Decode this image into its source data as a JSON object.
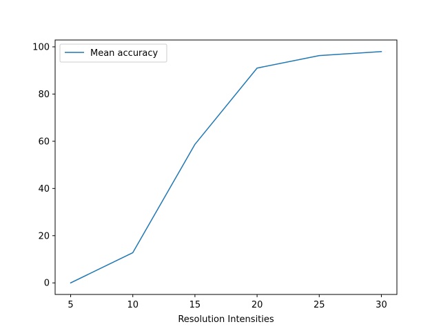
{
  "chart_data": {
    "type": "line",
    "title": "",
    "xlabel": "Resolution Intensities",
    "ylabel": "",
    "x": [
      5,
      10,
      15,
      20,
      25,
      30
    ],
    "series": [
      {
        "name": "Mean accuracy",
        "values": [
          0,
          12.8,
          58.7,
          91.0,
          96.3,
          98.0
        ],
        "color": "#1f77b4"
      }
    ],
    "xticks": [
      "5",
      "10",
      "15",
      "20",
      "25",
      "30"
    ],
    "yticks": [
      "0",
      "20",
      "40",
      "60",
      "80",
      "100"
    ],
    "xlim": [
      3.75,
      31.25
    ],
    "ylim": [
      -4.9,
      102.9
    ],
    "grid": false,
    "legend_position": "upper-left"
  }
}
